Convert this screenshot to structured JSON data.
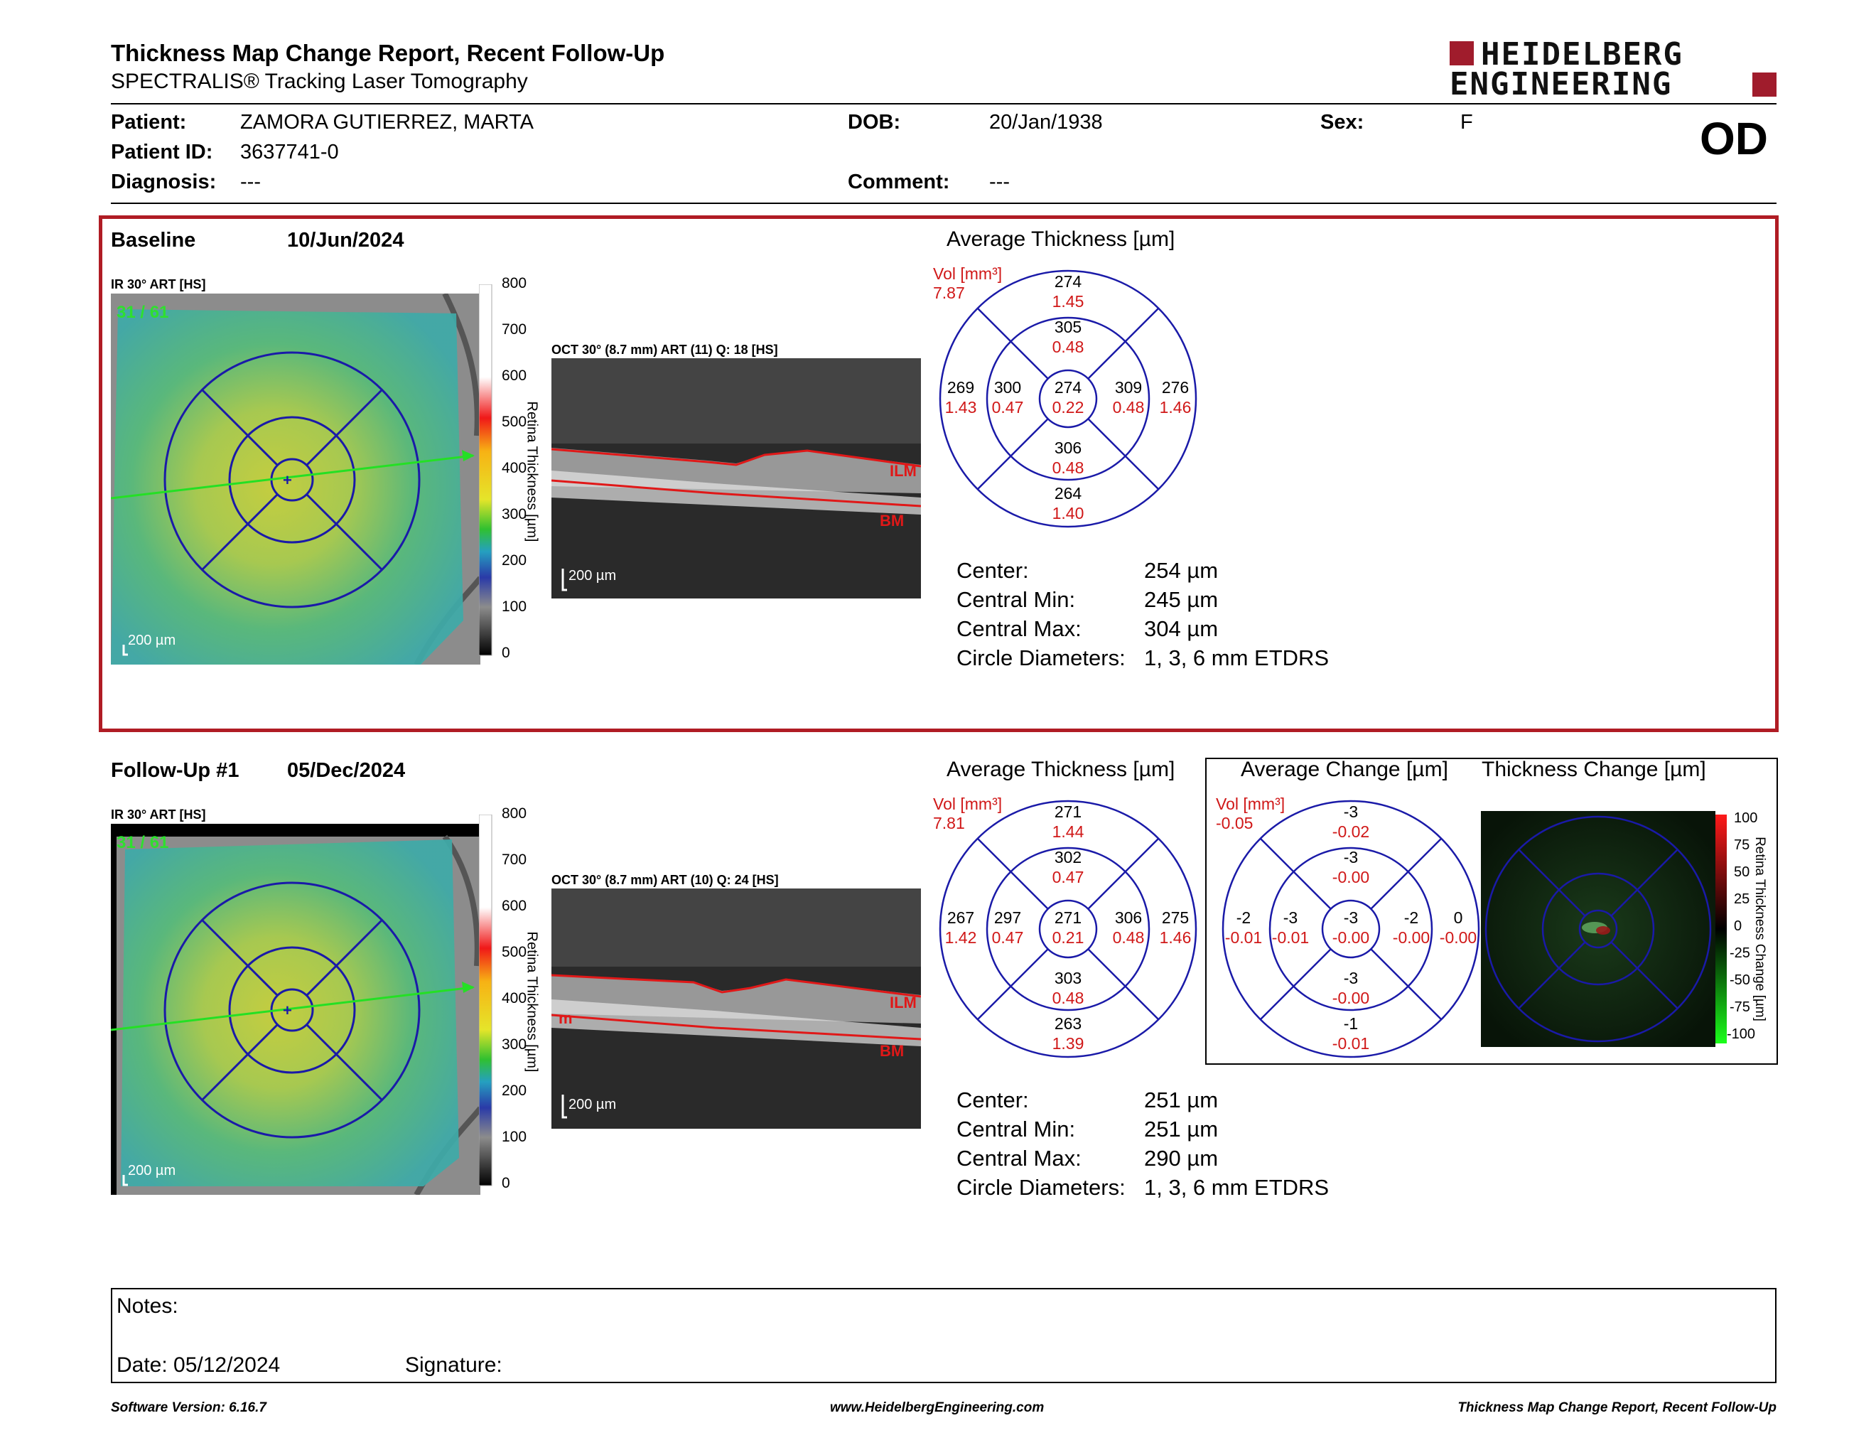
{
  "header": {
    "title": "Thickness Map Change Report, Recent Follow-Up",
    "subtitle": "SPECTRALIS® Tracking Laser Tomography",
    "logo_line1": "HEIDELBERG",
    "logo_line2": "ENGINEERING",
    "eye": "OD"
  },
  "patient": {
    "patient_label": "Patient:",
    "patient_value": "ZAMORA GUTIERREZ, MARTA",
    "id_label": "Patient ID:",
    "id_value": "3637741-0",
    "diagnosis_label": "Diagnosis:",
    "diagnosis_value": "---",
    "dob_label": "DOB:",
    "dob_value": "20/Jan/1938",
    "comment_label": "Comment:",
    "comment_value": "---",
    "sex_label": "Sex:",
    "sex_value": "F"
  },
  "baseline": {
    "label": "Baseline",
    "date": "10/Jun/2024",
    "ir_label": "IR 30° ART [HS]",
    "ir_counter": "31 / 61",
    "scale": "200 µm",
    "oct_label": "OCT 30° (8.7 mm) ART (11) Q: 18 [HS]",
    "oct_scale": "200 µm",
    "ilm": "ILM",
    "bm": "BM",
    "colorbar_ticks": [
      "800",
      "700",
      "600",
      "500",
      "400",
      "300",
      "200",
      "100",
      "0"
    ],
    "colorbar_label": "Retina Thickness [µm]",
    "avg_title": "Average Thickness [µm]",
    "vol_label": "Vol [mm³]",
    "vol_value": "7.87",
    "grid": {
      "outer_sup": [
        "274",
        "1.45"
      ],
      "inner_sup": [
        "305",
        "0.48"
      ],
      "outer_tmp": [
        "269",
        "1.43"
      ],
      "inner_tmp": [
        "300",
        "0.47"
      ],
      "center": [
        "274",
        "0.22"
      ],
      "inner_nas": [
        "309",
        "0.48"
      ],
      "outer_nas": [
        "276",
        "1.46"
      ],
      "inner_inf": [
        "306",
        "0.48"
      ],
      "outer_inf": [
        "264",
        "1.40"
      ]
    },
    "stats": [
      {
        "label": "Center:",
        "value": "254 µm"
      },
      {
        "label": "Central Min:",
        "value": "245 µm"
      },
      {
        "label": "Central Max:",
        "value": "304 µm"
      },
      {
        "label": "Circle Diameters:",
        "value": "1, 3, 6 mm ETDRS"
      }
    ]
  },
  "followup": {
    "label": "Follow-Up #1",
    "date": "05/Dec/2024",
    "ir_label": "IR 30° ART [HS]",
    "ir_counter": "31 / 61",
    "scale": "200 µm",
    "oct_label": "OCT 30° (8.7 mm) ART (10) Q: 24 [HS]",
    "oct_scale": "200 µm",
    "ilm": "ILM",
    "bm": "BM",
    "m": "m",
    "colorbar_ticks": [
      "800",
      "700",
      "600",
      "500",
      "400",
      "300",
      "200",
      "100",
      "0"
    ],
    "colorbar_label": "Retina Thickness [µm]",
    "avg_title": "Average Thickness [µm]",
    "vol_label": "Vol [mm³]",
    "vol_value": "7.81",
    "grid": {
      "outer_sup": [
        "271",
        "1.44"
      ],
      "inner_sup": [
        "302",
        "0.47"
      ],
      "outer_tmp": [
        "267",
        "1.42"
      ],
      "inner_tmp": [
        "297",
        "0.47"
      ],
      "center": [
        "271",
        "0.21"
      ],
      "inner_nas": [
        "306",
        "0.48"
      ],
      "outer_nas": [
        "275",
        "1.46"
      ],
      "inner_inf": [
        "303",
        "0.48"
      ],
      "outer_inf": [
        "263",
        "1.39"
      ]
    },
    "change_title": "Average Change [µm]",
    "change_vol_label": "Vol [mm³]",
    "change_vol_value": "-0.05",
    "change_grid": {
      "outer_sup": [
        "-3",
        "-0.02"
      ],
      "inner_sup": [
        "-3",
        "-0.00"
      ],
      "outer_tmp": [
        "-2",
        "-0.01"
      ],
      "inner_tmp": [
        "-3",
        "-0.01"
      ],
      "center": [
        "-3",
        "-0.00"
      ],
      "inner_nas": [
        "-2",
        "-0.00"
      ],
      "outer_nas": [
        "0",
        "-0.00"
      ],
      "inner_inf": [
        "-3",
        "-0.00"
      ],
      "outer_inf": [
        "-1",
        "-0.01"
      ]
    },
    "thick_change_title": "Thickness Change [µm]",
    "change_bar_ticks": [
      "100",
      "75",
      "50",
      "25",
      "0",
      "-25",
      "-50",
      "-75",
      "-100"
    ],
    "change_bar_label": "Retina Thickness Change [µm]",
    "stats": [
      {
        "label": "Center:",
        "value": "251 µm"
      },
      {
        "label": "Central Min:",
        "value": "251 µm"
      },
      {
        "label": "Central Max:",
        "value": "290 µm"
      },
      {
        "label": "Circle Diameters:",
        "value": "1, 3, 6 mm ETDRS"
      }
    ]
  },
  "notes": {
    "notes_label": "Notes:",
    "date_label": "Date: 05/12/2024",
    "signature_label": "Signature:"
  },
  "footer": {
    "left": "Software Version: 6.16.7",
    "center": "www.HeidelbergEngineering.com",
    "right": "Thickness Map Change Report, Recent Follow-Up"
  },
  "colors": {
    "frame_red": "#b01c24",
    "grid_blue": "#1a1aa8",
    "value_red": "#d01818",
    "logo_red": "#a01c2c"
  }
}
